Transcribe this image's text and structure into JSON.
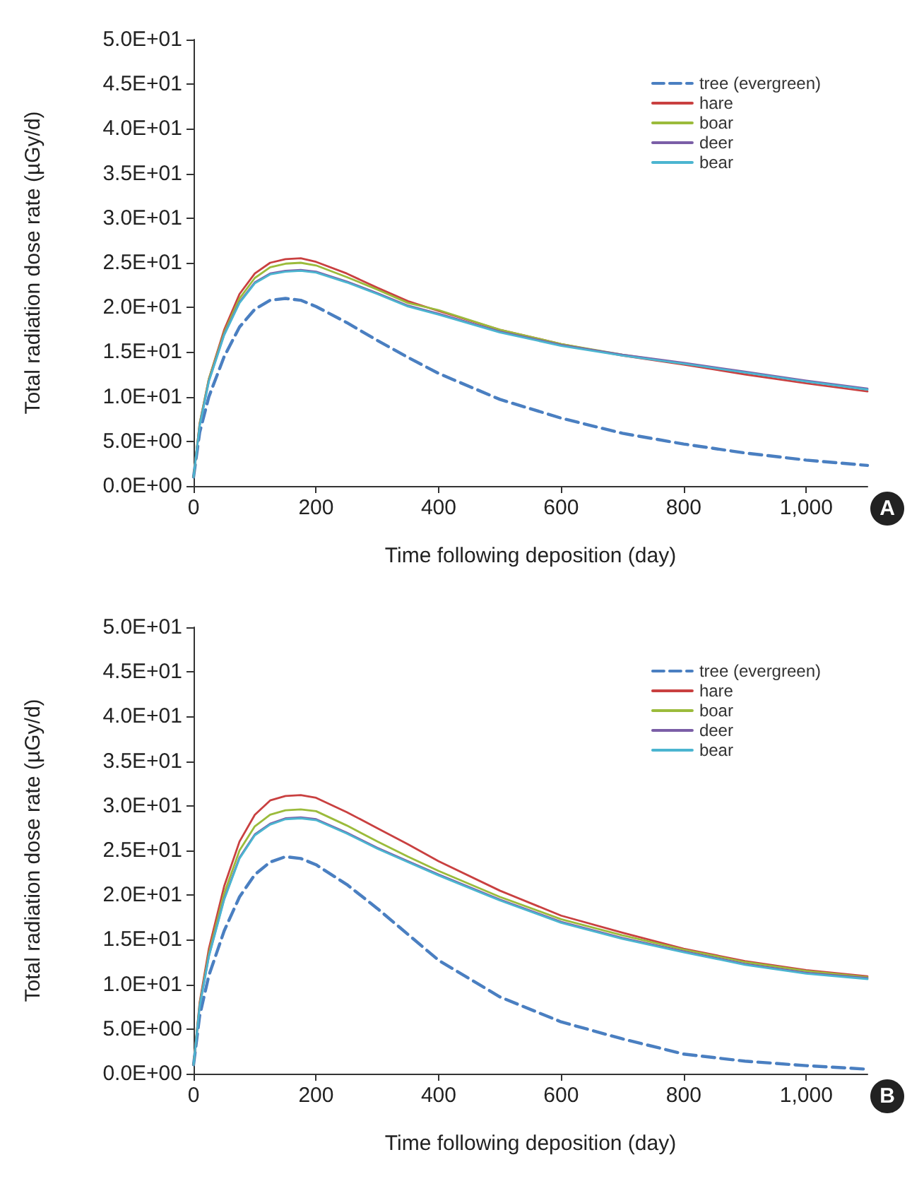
{
  "chart_data": [
    {
      "type": "line",
      "xlabel": "Time following deposition (day)",
      "ylabel": "Total radiation dose rate (µGy/d)",
      "annotations": [
        "A"
      ],
      "x": [
        0,
        10,
        25,
        50,
        75,
        100,
        125,
        150,
        175,
        200,
        250,
        300,
        350,
        400,
        500,
        600,
        700,
        800,
        900,
        1000,
        1100
      ],
      "xlim": [
        0,
        1100
      ],
      "xticks": [
        0,
        200,
        400,
        600,
        800,
        {
          "value": 1000,
          "label": "1,000"
        }
      ],
      "ylim": [
        0,
        50
      ],
      "yticks": [
        {
          "value": 0,
          "label": "0.0E+00"
        },
        {
          "value": 5,
          "label": "5.0E+00"
        },
        {
          "value": 10,
          "label": "1.0E+01"
        },
        {
          "value": 15,
          "label": "1.5E+01"
        },
        {
          "value": 20,
          "label": "2.0E+01"
        },
        {
          "value": 25,
          "label": "2.5E+01"
        },
        {
          "value": 30,
          "label": "3.0E+01"
        },
        {
          "value": 35,
          "label": "3.5E+01"
        },
        {
          "value": 40,
          "label": "4.0E+01"
        },
        {
          "value": 45,
          "label": "4.5E+01"
        },
        {
          "value": 50,
          "label": "5.0E+01"
        }
      ],
      "grid": false,
      "legend": "top right",
      "marker": "none",
      "series": [
        {
          "name": "tree (evergreen)",
          "color": "#4a7fc1",
          "line_style": "dashed",
          "values": [
            1,
            6,
            10,
            14.5,
            17.8,
            19.8,
            20.8,
            21,
            20.8,
            20.1,
            18.3,
            16.3,
            14.4,
            12.6,
            9.7,
            7.6,
            5.9,
            4.7,
            3.7,
            2.9,
            2.3
          ]
        },
        {
          "name": "hare",
          "color": "#c94040",
          "line_style": "solid",
          "values": [
            1,
            7,
            12,
            17.5,
            21.5,
            23.8,
            25,
            25.4,
            25.5,
            25.1,
            23.8,
            22.2,
            20.7,
            19.6,
            17.5,
            15.9,
            14.6,
            13.6,
            12.5,
            11.5,
            10.6
          ]
        },
        {
          "name": "boar",
          "color": "#9bbb3b",
          "line_style": "solid",
          "values": [
            1,
            7,
            12,
            17.2,
            21,
            23.3,
            24.5,
            24.9,
            25,
            24.7,
            23.4,
            22,
            20.5,
            19.7,
            17.5,
            15.9,
            14.7,
            13.7,
            null,
            null,
            null
          ]
        },
        {
          "name": "deer",
          "color": "#7b5ea7",
          "line_style": "solid",
          "values": [
            1,
            6.8,
            11.8,
            17,
            20.6,
            22.8,
            23.8,
            24.1,
            24.2,
            24,
            22.9,
            21.6,
            20.2,
            19.3,
            17.3,
            15.8,
            14.7,
            13.8,
            12.8,
            11.8,
            10.9
          ]
        },
        {
          "name": "bear",
          "color": "#4bb5d0",
          "line_style": "solid",
          "values": [
            1,
            6.7,
            11.7,
            16.9,
            20.5,
            22.7,
            23.7,
            24,
            24.1,
            23.9,
            22.8,
            21.5,
            20.1,
            19.2,
            17.2,
            15.7,
            14.6,
            13.7,
            12.7,
            11.7,
            10.8
          ]
        }
      ]
    },
    {
      "type": "line",
      "xlabel": "Time following deposition (day)",
      "ylabel": "Total radiation dose rate (µGy/d)",
      "annotations": [
        "B"
      ],
      "x": [
        0,
        10,
        25,
        50,
        75,
        100,
        125,
        150,
        175,
        200,
        250,
        300,
        350,
        400,
        500,
        600,
        700,
        800,
        900,
        1000,
        1100
      ],
      "xlim": [
        0,
        1100
      ],
      "xticks": [
        0,
        200,
        400,
        600,
        800,
        {
          "value": 1000,
          "label": "1,000"
        }
      ],
      "ylim": [
        0,
        50
      ],
      "yticks": [
        {
          "value": 0,
          "label": "0.0E+00"
        },
        {
          "value": 5,
          "label": "5.0E+00"
        },
        {
          "value": 10,
          "label": "1.0E+01"
        },
        {
          "value": 15,
          "label": "1.5E+01"
        },
        {
          "value": 20,
          "label": "2.0E+01"
        },
        {
          "value": 25,
          "label": "2.5E+01"
        },
        {
          "value": 30,
          "label": "3.0E+01"
        },
        {
          "value": 35,
          "label": "3.5E+01"
        },
        {
          "value": 40,
          "label": "4.0E+01"
        },
        {
          "value": 45,
          "label": "4.5E+01"
        },
        {
          "value": 50,
          "label": "5.0E+01"
        }
      ],
      "grid": false,
      "legend": "top right",
      "marker": "none",
      "series": [
        {
          "name": "tree (evergreen)",
          "color": "#4a7fc1",
          "line_style": "dashed",
          "values": [
            1,
            6.5,
            11,
            16,
            19.8,
            22.3,
            23.7,
            24.3,
            24.1,
            23.4,
            21.2,
            18.5,
            15.6,
            12.7,
            8.6,
            5.8,
            3.9,
            2.2,
            1.4,
            0.9,
            0.5
          ]
        },
        {
          "name": "hare",
          "color": "#c94040",
          "line_style": "solid",
          "values": [
            1,
            8,
            14,
            21,
            26,
            29,
            30.6,
            31.1,
            31.2,
            30.9,
            29.3,
            27.5,
            25.7,
            23.8,
            20.5,
            17.7,
            15.8,
            14,
            12.6,
            11.6,
            10.9
          ]
        },
        {
          "name": "boar",
          "color": "#9bbb3b",
          "line_style": "solid",
          "values": [
            1,
            7.8,
            13.5,
            20.2,
            25,
            27.7,
            29,
            29.5,
            29.6,
            29.4,
            27.8,
            26,
            24.3,
            22.7,
            19.8,
            17.3,
            15.5,
            13.9,
            12.5,
            11.5,
            10.8
          ]
        },
        {
          "name": "deer",
          "color": "#7b5ea7",
          "line_style": "solid",
          "values": [
            1,
            7.6,
            13.2,
            19.6,
            24.2,
            26.8,
            28,
            28.6,
            28.7,
            28.5,
            27,
            25.3,
            23.8,
            22.3,
            19.5,
            17,
            15.2,
            13.7,
            12.3,
            11.3,
            10.7
          ]
        },
        {
          "name": "bear",
          "color": "#4bb5d0",
          "line_style": "solid",
          "values": [
            1,
            7.5,
            13.1,
            19.5,
            24.1,
            26.7,
            27.9,
            28.5,
            28.6,
            28.4,
            26.9,
            25.2,
            23.7,
            22.2,
            19.4,
            16.9,
            15.1,
            13.6,
            12.2,
            11.2,
            10.6
          ]
        }
      ]
    }
  ]
}
